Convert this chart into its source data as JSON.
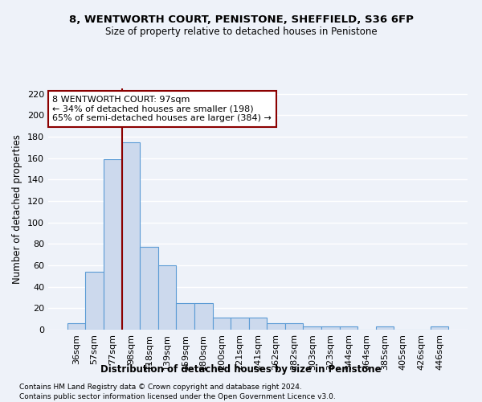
{
  "title1": "8, WENTWORTH COURT, PENISTONE, SHEFFIELD, S36 6FP",
  "title2": "Size of property relative to detached houses in Penistone",
  "xlabel": "Distribution of detached houses by size in Penistone",
  "ylabel": "Number of detached properties",
  "categories": [
    "36sqm",
    "57sqm",
    "77sqm",
    "98sqm",
    "118sqm",
    "139sqm",
    "159sqm",
    "180sqm",
    "200sqm",
    "221sqm",
    "241sqm",
    "262sqm",
    "282sqm",
    "303sqm",
    "323sqm",
    "344sqm",
    "364sqm",
    "385sqm",
    "405sqm",
    "426sqm",
    "446sqm"
  ],
  "values": [
    6,
    54,
    159,
    175,
    77,
    60,
    25,
    25,
    11,
    11,
    11,
    6,
    6,
    3,
    3,
    3,
    0,
    3,
    0,
    0,
    3
  ],
  "bar_color": "#ccd9ed",
  "bar_edge_color": "#5b9bd5",
  "annotation_line1": "8 WENTWORTH COURT: 97sqm",
  "annotation_line2": "← 34% of detached houses are smaller (198)",
  "annotation_line3": "65% of semi-detached houses are larger (384) →",
  "vline_x_index": 3,
  "vline_color": "#8b0000",
  "annotation_box_color": "#8b0000",
  "ylim": [
    0,
    225
  ],
  "yticks": [
    0,
    20,
    40,
    60,
    80,
    100,
    120,
    140,
    160,
    180,
    200,
    220
  ],
  "footer1": "Contains HM Land Registry data © Crown copyright and database right 2024.",
  "footer2": "Contains public sector information licensed under the Open Government Licence v3.0.",
  "background_color": "#eef2f9",
  "grid_color": "#d8dde8"
}
